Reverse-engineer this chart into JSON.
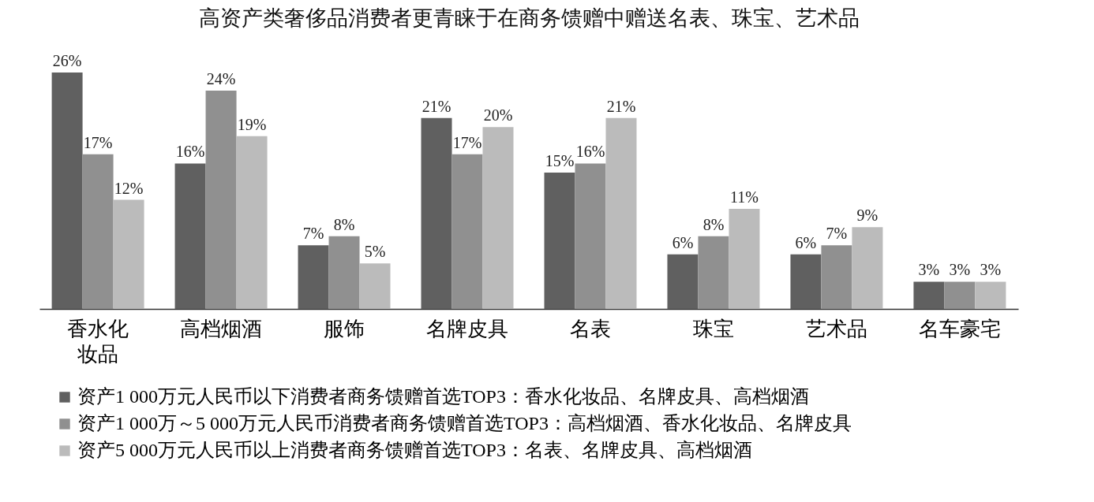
{
  "chart_data": {
    "type": "bar",
    "title": "高资产类奢侈品消费者更青睐于在商务馈赠中赠送名表、珠宝、艺术品",
    "categories": [
      "香水化妆品",
      "高档烟酒",
      "服饰",
      "名牌皮具",
      "名表",
      "珠宝",
      "艺术品",
      "名车豪宅"
    ],
    "series": [
      {
        "name": "资产1 000万元人民币以下消费者商务馈赠首选TOP3：香水化妆品、名牌皮具、高档烟酒",
        "color": "#606060",
        "values": [
          26,
          16,
          7,
          21,
          15,
          6,
          6,
          3
        ],
        "value_labels": [
          "26%",
          "16%",
          "7%",
          "21%",
          "15%",
          "6%",
          "6%",
          "3%"
        ]
      },
      {
        "name": "资产1 000万～5 000万元人民币消费者商务馈赠首选TOP3：高档烟酒、香水化妆品、名牌皮具",
        "color": "#909090",
        "values": [
          17,
          24,
          8,
          17,
          16,
          8,
          7,
          3
        ],
        "value_labels": [
          "17%",
          "24%",
          "8%",
          "17%",
          "16%",
          "8%",
          "7%",
          "3%"
        ]
      },
      {
        "name": "资产5 000万元人民币以上消费者商务馈赠首选TOP3：名表、名牌皮具、高档烟酒",
        "color": "#bbbbbb",
        "values": [
          12,
          19,
          5,
          20,
          21,
          11,
          9,
          3
        ],
        "value_labels": [
          "12%",
          "19%",
          "5%",
          "20%",
          "21%",
          "11%",
          "9%",
          "3%"
        ]
      }
    ],
    "legend": "bottom",
    "grid": false
  }
}
